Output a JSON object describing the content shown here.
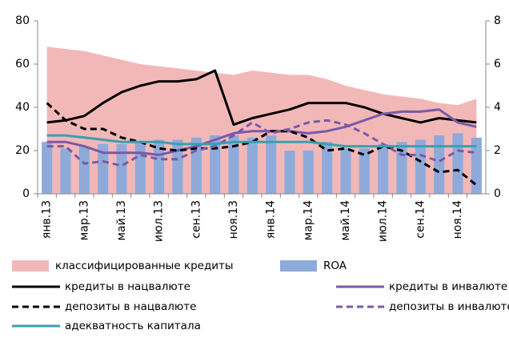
{
  "chart_data": {
    "type": "combo",
    "categories": [
      "янв.13",
      null,
      "мар.13",
      null,
      "май.13",
      null,
      "июл.13",
      null,
      "сен.13",
      null,
      "ноя.13",
      null,
      "янв.14",
      null,
      "мар.14",
      null,
      "май.14",
      null,
      "июл.14",
      null,
      "сен.14",
      null,
      "ноя.14",
      null
    ],
    "ylim": [
      0,
      80
    ],
    "yticks": [
      0,
      20,
      40,
      60,
      80
    ],
    "y2lim": [
      0,
      8
    ],
    "y2ticks": [
      0,
      2,
      4,
      6,
      8
    ],
    "series": [
      {
        "name": "классифицированные кредиты",
        "style": "area",
        "color": "#f2b8b8",
        "values": [
          68,
          67,
          66,
          64,
          62,
          60,
          59,
          58,
          57,
          56,
          55,
          57,
          56,
          55,
          55,
          53,
          50,
          48,
          46,
          45,
          44,
          42,
          41,
          44
        ]
      },
      {
        "name": "ROA",
        "style": "bar",
        "axis": "y2",
        "color": "#8eaadb",
        "values": [
          2.4,
          2.1,
          2.2,
          2.3,
          2.3,
          2.4,
          2.5,
          2.5,
          2.6,
          2.7,
          2.7,
          2.6,
          2.7,
          2.0,
          2.0,
          2.4,
          2.1,
          2.1,
          2.3,
          2.4,
          2.5,
          2.7,
          2.8,
          2.6
        ]
      },
      {
        "name": "кредиты в нацвалюте",
        "style": "line",
        "dash": false,
        "color": "#000000",
        "values": [
          33,
          34,
          36,
          42,
          47,
          50,
          52,
          52,
          53,
          57,
          32,
          35,
          37,
          39,
          42,
          42,
          42,
          40,
          37,
          35,
          33,
          35,
          34,
          33
        ]
      },
      {
        "name": "кредиты в инвалюте",
        "style": "line",
        "dash": false,
        "color": "#7b59a8",
        "values": [
          24,
          24,
          22,
          19,
          19,
          19,
          18,
          20,
          22,
          25,
          28,
          29,
          29,
          29,
          28,
          29,
          31,
          34,
          37,
          38,
          38,
          39,
          33,
          31
        ]
      },
      {
        "name": "депозиты в нацвалюте",
        "style": "line",
        "dash": true,
        "color": "#000000",
        "values": [
          42,
          34,
          30,
          30,
          26,
          24,
          21,
          20,
          21,
          21,
          22,
          24,
          29,
          29,
          26,
          20,
          21,
          18,
          22,
          20,
          15,
          10,
          11,
          4
        ]
      },
      {
        "name": "депозиты в инвалюте",
        "style": "line",
        "dash": true,
        "color": "#7b59a8",
        "values": [
          22,
          22,
          14,
          15,
          13,
          18,
          16,
          16,
          20,
          22,
          27,
          33,
          28,
          30,
          33,
          34,
          32,
          28,
          23,
          18,
          18,
          15,
          20,
          19
        ]
      },
      {
        "name": "адекватность капитала",
        "style": "line",
        "dash": false,
        "color": "#3a9fb0",
        "values": [
          27,
          27,
          26,
          25,
          24,
          24,
          24,
          23,
          23,
          23,
          24,
          24,
          24,
          24,
          24,
          23,
          22,
          22,
          22,
          22,
          22,
          22,
          22,
          22
        ]
      }
    ]
  }
}
